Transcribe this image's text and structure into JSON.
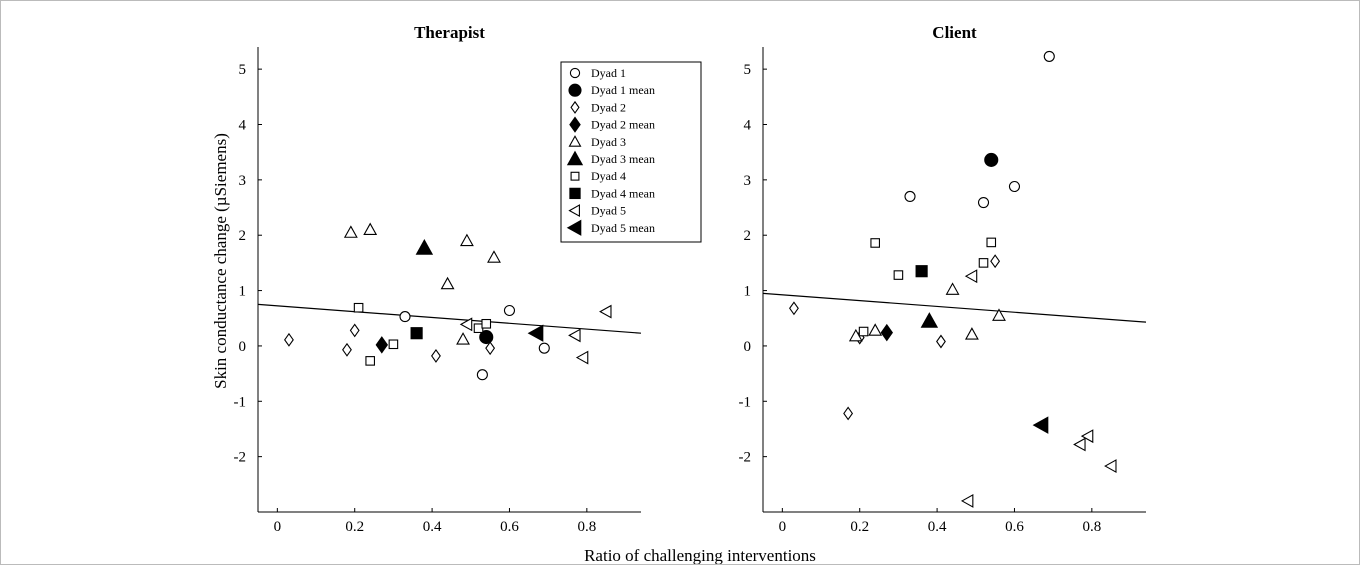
{
  "figure": {
    "xlabel": "Ratio of challenging interventions",
    "ylabel": "Skin conductance change (µSiemens)"
  },
  "legend": [
    {
      "label": "Dyad 1",
      "marker": "circle",
      "filled": false
    },
    {
      "label": "Dyad 1 mean",
      "marker": "circle",
      "filled": true
    },
    {
      "label": "Dyad 2",
      "marker": "diamond",
      "filled": false
    },
    {
      "label": "Dyad 2 mean",
      "marker": "diamond",
      "filled": true
    },
    {
      "label": "Dyad 3",
      "marker": "triangle-up",
      "filled": false
    },
    {
      "label": "Dyad 3 mean",
      "marker": "triangle-up",
      "filled": true
    },
    {
      "label": "Dyad 4",
      "marker": "square",
      "filled": false
    },
    {
      "label": "Dyad 4 mean",
      "marker": "square",
      "filled": true
    },
    {
      "label": "Dyad 5",
      "marker": "triangle-left",
      "filled": false
    },
    {
      "label": "Dyad 5 mean",
      "marker": "triangle-left",
      "filled": true
    }
  ],
  "chart_data": [
    {
      "type": "scatter",
      "title": "Therapist",
      "xlim": [
        -0.05,
        0.94
      ],
      "ylim": [
        -3,
        5.4
      ],
      "xticks": [
        0,
        0.2,
        0.4,
        0.6,
        0.8
      ],
      "xtick_labels": [
        "0",
        "0.2",
        "0.4",
        "0.6",
        "0.8"
      ],
      "yticks": [
        -2,
        -1,
        0,
        1,
        2,
        3,
        4,
        5
      ],
      "ytick_labels": [
        "-2",
        "-1",
        "0",
        "1",
        "2",
        "3",
        "4",
        "5"
      ],
      "legend_position": "top-right",
      "series": [
        {
          "name": "Dyad 1",
          "marker": "circle",
          "filled": false,
          "points": [
            [
              0.33,
              0.53
            ],
            [
              0.6,
              0.64
            ],
            [
              0.53,
              -0.52
            ],
            [
              0.69,
              -0.04
            ]
          ]
        },
        {
          "name": "Dyad 1 mean",
          "marker": "circle",
          "filled": true,
          "points": [
            [
              0.54,
              0.16
            ]
          ]
        },
        {
          "name": "Dyad 2",
          "marker": "diamond",
          "filled": false,
          "points": [
            [
              0.03,
              0.11
            ],
            [
              0.18,
              -0.07
            ],
            [
              0.2,
              0.28
            ],
            [
              0.41,
              -0.18
            ],
            [
              0.55,
              -0.04
            ]
          ]
        },
        {
          "name": "Dyad 2 mean",
          "marker": "diamond",
          "filled": true,
          "points": [
            [
              0.27,
              0.02
            ]
          ]
        },
        {
          "name": "Dyad 3",
          "marker": "triangle-up",
          "filled": false,
          "points": [
            [
              0.19,
              2.05
            ],
            [
              0.24,
              2.1
            ],
            [
              0.44,
              1.12
            ],
            [
              0.49,
              1.9
            ],
            [
              0.56,
              1.6
            ],
            [
              0.48,
              0.12
            ]
          ]
        },
        {
          "name": "Dyad 3 mean",
          "marker": "triangle-up",
          "filled": true,
          "points": [
            [
              0.38,
              1.77
            ]
          ]
        },
        {
          "name": "Dyad 4",
          "marker": "square",
          "filled": false,
          "points": [
            [
              0.21,
              0.69
            ],
            [
              0.24,
              -0.27
            ],
            [
              0.3,
              0.03
            ],
            [
              0.52,
              0.32
            ],
            [
              0.54,
              0.4
            ]
          ]
        },
        {
          "name": "Dyad 4 mean",
          "marker": "square",
          "filled": true,
          "points": [
            [
              0.36,
              0.23
            ]
          ]
        },
        {
          "name": "Dyad 5",
          "marker": "triangle-left",
          "filled": false,
          "points": [
            [
              0.49,
              0.39
            ],
            [
              0.77,
              0.19
            ],
            [
              0.79,
              -0.21
            ],
            [
              0.85,
              0.62
            ]
          ]
        },
        {
          "name": "Dyad 5 mean",
          "marker": "triangle-left",
          "filled": true,
          "points": [
            [
              0.67,
              0.23
            ]
          ]
        }
      ],
      "fit_line": {
        "x": [
          -0.05,
          0.94
        ],
        "y": [
          0.75,
          0.23
        ]
      }
    },
    {
      "type": "scatter",
      "title": "Client",
      "xlim": [
        -0.05,
        0.94
      ],
      "ylim": [
        -3,
        5.4
      ],
      "xticks": [
        0,
        0.2,
        0.4,
        0.6,
        0.8
      ],
      "xtick_labels": [
        "0",
        "0.2",
        "0.4",
        "0.6",
        "0.8"
      ],
      "yticks": [
        -2,
        -1,
        0,
        1,
        2,
        3,
        4,
        5
      ],
      "ytick_labels": [
        "-2",
        "-1",
        "0",
        "1",
        "2",
        "3",
        "4",
        "5"
      ],
      "series": [
        {
          "name": "Dyad 1",
          "marker": "circle",
          "filled": false,
          "points": [
            [
              0.69,
              5.23
            ],
            [
              0.33,
              2.7
            ],
            [
              0.52,
              2.59
            ],
            [
              0.6,
              2.88
            ]
          ]
        },
        {
          "name": "Dyad 1 mean",
          "marker": "circle",
          "filled": true,
          "points": [
            [
              0.54,
              3.36
            ]
          ]
        },
        {
          "name": "Dyad 2",
          "marker": "diamond",
          "filled": false,
          "points": [
            [
              0.03,
              0.68
            ],
            [
              0.17,
              -1.22
            ],
            [
              0.2,
              0.15
            ],
            [
              0.41,
              0.08
            ],
            [
              0.55,
              1.53
            ]
          ]
        },
        {
          "name": "Dyad 2 mean",
          "marker": "diamond",
          "filled": true,
          "points": [
            [
              0.27,
              0.24
            ]
          ]
        },
        {
          "name": "Dyad 3",
          "marker": "triangle-up",
          "filled": false,
          "points": [
            [
              0.19,
              0.18
            ],
            [
              0.24,
              0.28
            ],
            [
              0.44,
              1.02
            ],
            [
              0.49,
              0.21
            ],
            [
              0.56,
              0.55
            ]
          ]
        },
        {
          "name": "Dyad 3 mean",
          "marker": "triangle-up",
          "filled": true,
          "points": [
            [
              0.38,
              0.45
            ]
          ]
        },
        {
          "name": "Dyad 4",
          "marker": "square",
          "filled": false,
          "points": [
            [
              0.21,
              0.26
            ],
            [
              0.24,
              1.86
            ],
            [
              0.3,
              1.28
            ],
            [
              0.52,
              1.5
            ],
            [
              0.54,
              1.87
            ]
          ]
        },
        {
          "name": "Dyad 4 mean",
          "marker": "square",
          "filled": true,
          "points": [
            [
              0.36,
              1.35
            ]
          ]
        },
        {
          "name": "Dyad 5",
          "marker": "triangle-left",
          "filled": false,
          "points": [
            [
              0.49,
              1.26
            ],
            [
              0.48,
              -2.8
            ],
            [
              0.77,
              -1.78
            ],
            [
              0.79,
              -1.63
            ],
            [
              0.85,
              -2.17
            ]
          ]
        },
        {
          "name": "Dyad 5 mean",
          "marker": "triangle-left",
          "filled": true,
          "points": [
            [
              0.67,
              -1.43
            ]
          ]
        }
      ],
      "fit_line": {
        "x": [
          -0.05,
          0.94
        ],
        "y": [
          0.95,
          0.43
        ]
      }
    }
  ]
}
